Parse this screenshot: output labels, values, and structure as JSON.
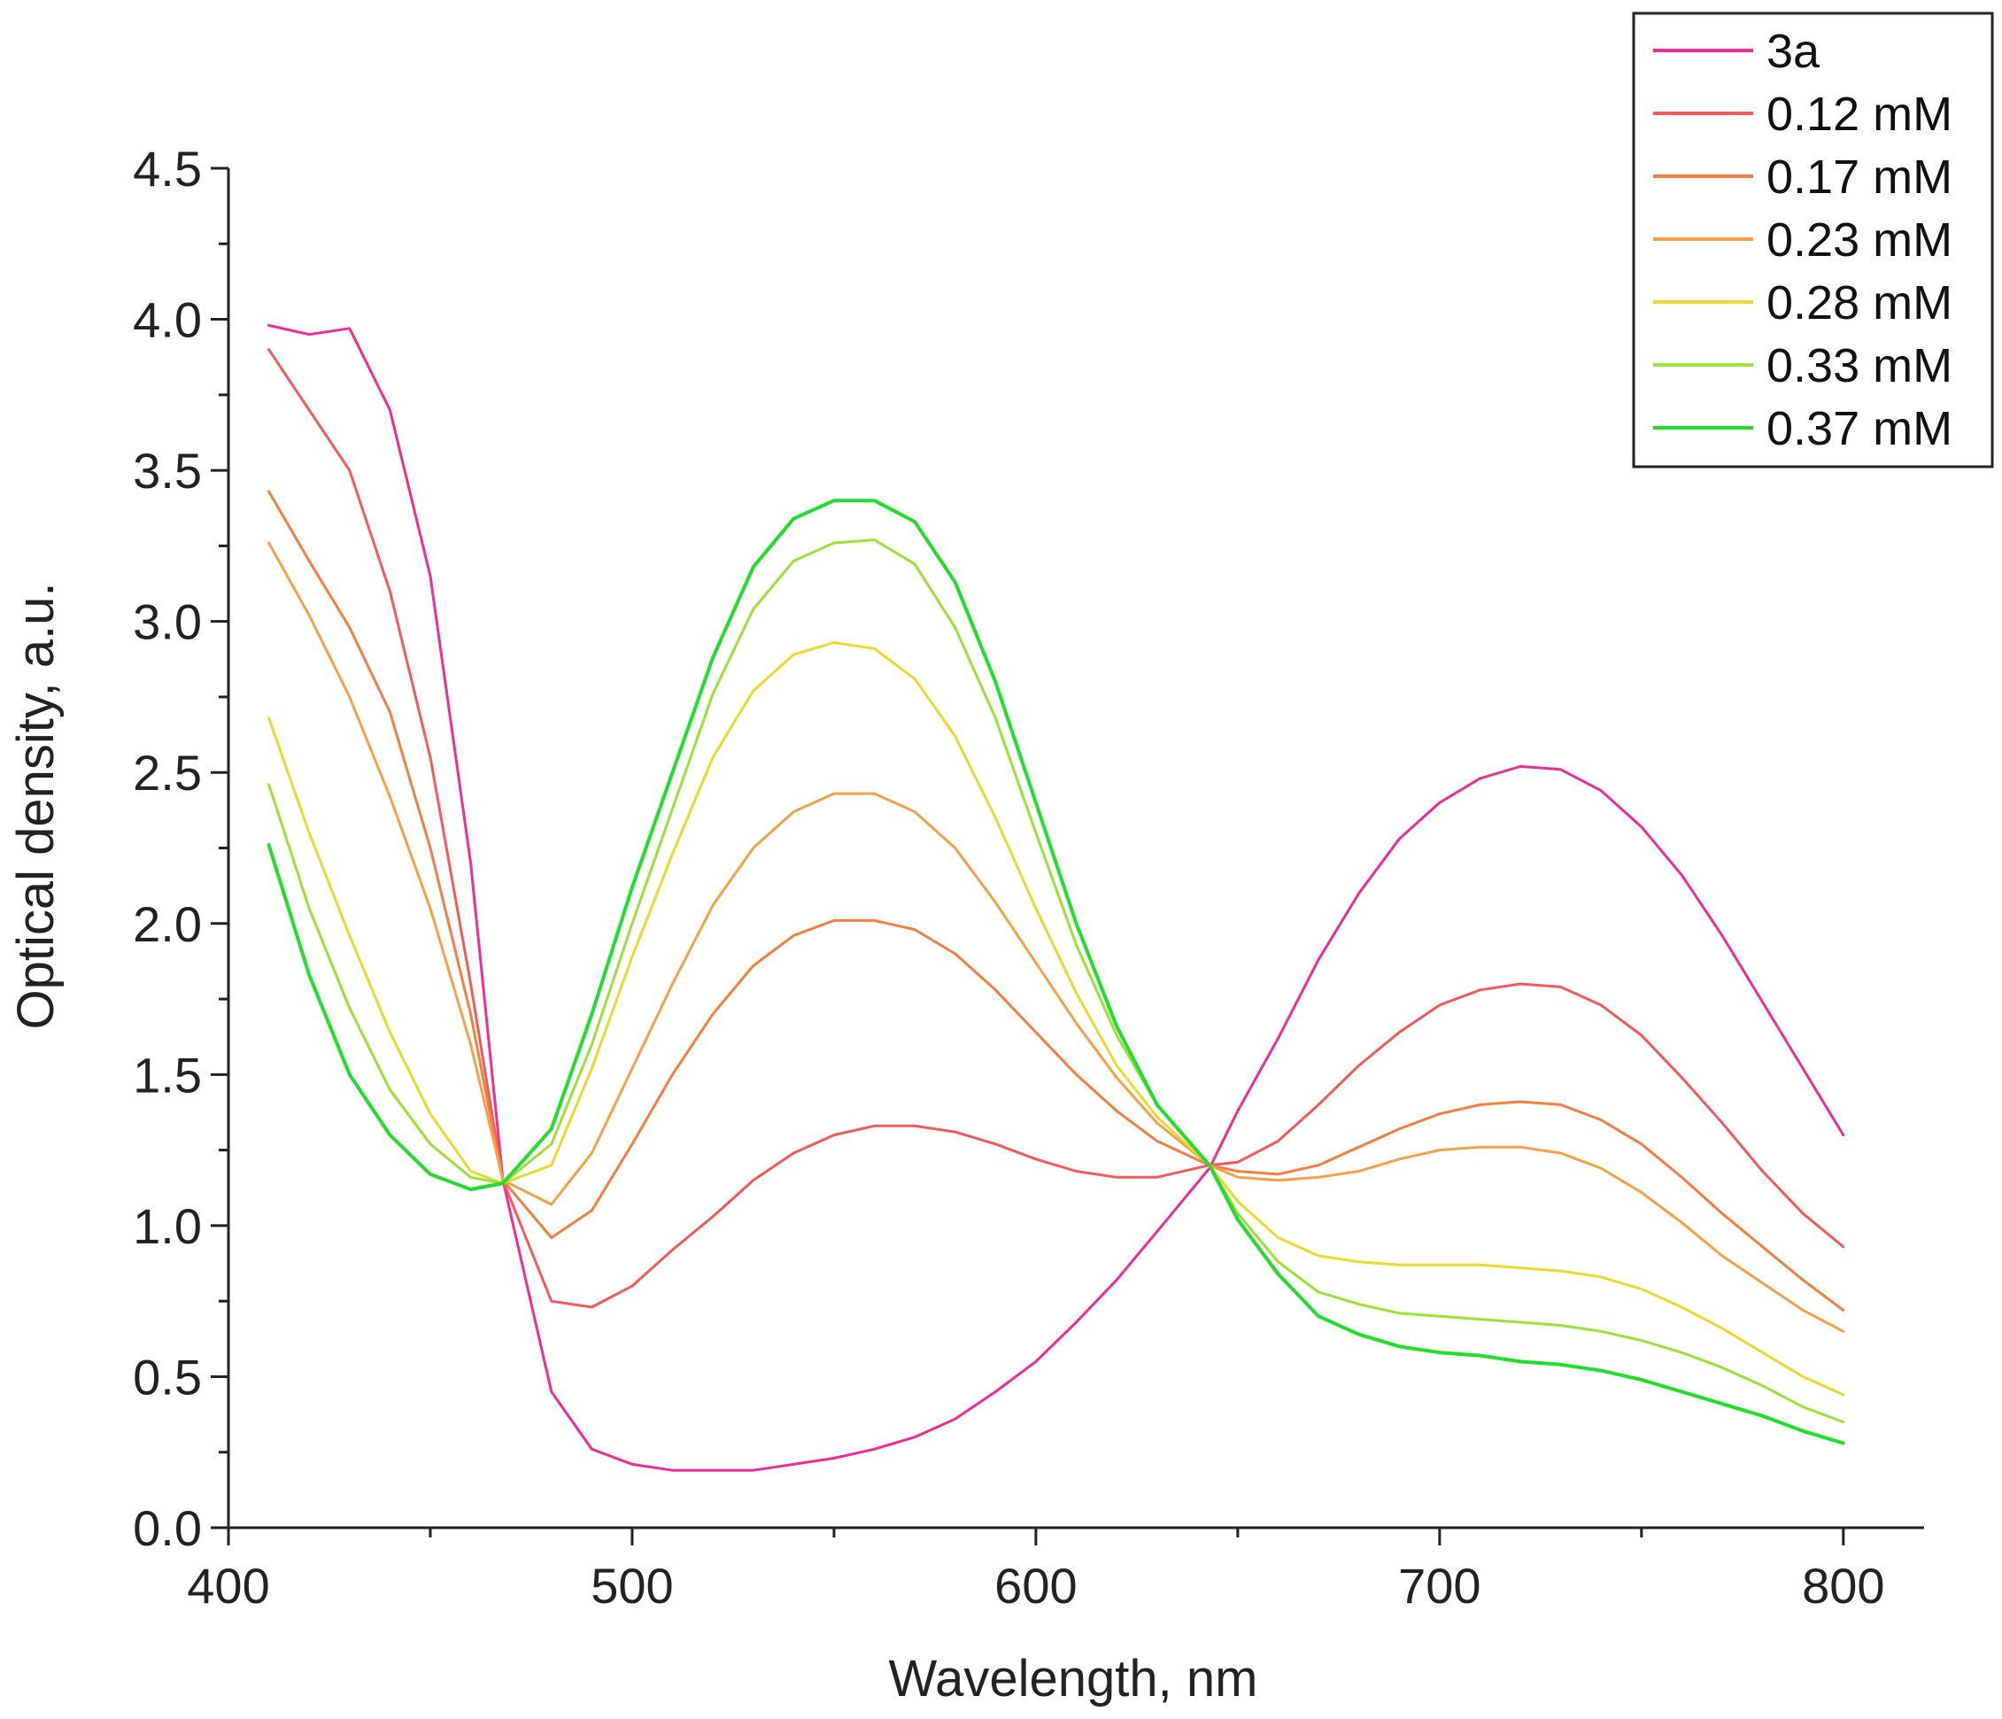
{
  "chart_data": {
    "type": "line",
    "title": "",
    "xlabel": "Wavelength, nm",
    "ylabel": "Optical density, a.u.",
    "xlim": [
      400,
      820
    ],
    "ylim": [
      0,
      4.5
    ],
    "x_ticks": [
      "400",
      "500",
      "600",
      "700",
      "800"
    ],
    "y_ticks": [
      "0.0",
      "0.5",
      "1.0",
      "1.5",
      "2.0",
      "2.5",
      "3.0",
      "3.5",
      "4.0",
      "4.5"
    ],
    "grid": false,
    "legend_position": "top-right",
    "x": [
      410,
      420,
      430,
      440,
      450,
      460,
      468,
      480,
      490,
      500,
      510,
      520,
      530,
      540,
      550,
      560,
      570,
      580,
      590,
      600,
      610,
      620,
      630,
      643,
      650,
      660,
      670,
      680,
      690,
      700,
      710,
      720,
      730,
      740,
      750,
      760,
      770,
      780,
      790,
      800
    ],
    "series": [
      {
        "name": "3a",
        "color": "#ee2d96",
        "values": [
          3.98,
          3.95,
          3.97,
          3.7,
          3.15,
          2.2,
          1.15,
          0.45,
          0.26,
          0.21,
          0.19,
          0.19,
          0.19,
          0.21,
          0.23,
          0.26,
          0.3,
          0.36,
          0.45,
          0.55,
          0.68,
          0.82,
          0.98,
          1.19,
          1.38,
          1.62,
          1.88,
          2.1,
          2.28,
          2.4,
          2.48,
          2.52,
          2.51,
          2.44,
          2.32,
          2.16,
          1.96,
          1.74,
          1.52,
          1.3
        ]
      },
      {
        "name": "0.12 mM",
        "color": "#f45a5a",
        "values": [
          3.9,
          3.7,
          3.5,
          3.1,
          2.55,
          1.8,
          1.15,
          0.75,
          0.73,
          0.8,
          0.92,
          1.03,
          1.15,
          1.24,
          1.3,
          1.33,
          1.33,
          1.31,
          1.27,
          1.22,
          1.18,
          1.16,
          1.16,
          1.2,
          1.21,
          1.28,
          1.4,
          1.53,
          1.64,
          1.73,
          1.78,
          1.8,
          1.79,
          1.73,
          1.63,
          1.49,
          1.34,
          1.18,
          1.04,
          0.93
        ]
      },
      {
        "name": "0.17 mM",
        "color": "#f57e40",
        "values": [
          3.43,
          3.2,
          2.98,
          2.7,
          2.25,
          1.7,
          1.15,
          0.96,
          1.05,
          1.27,
          1.5,
          1.7,
          1.86,
          1.96,
          2.01,
          2.01,
          1.98,
          1.9,
          1.78,
          1.64,
          1.5,
          1.38,
          1.28,
          1.2,
          1.18,
          1.17,
          1.2,
          1.26,
          1.32,
          1.37,
          1.4,
          1.41,
          1.4,
          1.35,
          1.27,
          1.16,
          1.04,
          0.93,
          0.82,
          0.72
        ]
      },
      {
        "name": "0.23 mM",
        "color": "#f8a048",
        "values": [
          3.26,
          3.02,
          2.75,
          2.42,
          2.05,
          1.6,
          1.15,
          1.07,
          1.24,
          1.52,
          1.8,
          2.06,
          2.25,
          2.37,
          2.43,
          2.43,
          2.37,
          2.25,
          2.07,
          1.87,
          1.67,
          1.49,
          1.34,
          1.2,
          1.16,
          1.15,
          1.16,
          1.18,
          1.22,
          1.25,
          1.26,
          1.26,
          1.24,
          1.19,
          1.11,
          1.01,
          0.9,
          0.81,
          0.72,
          0.65
        ]
      },
      {
        "name": "0.28 mM",
        "color": "#ecd930",
        "values": [
          2.68,
          2.3,
          1.96,
          1.64,
          1.37,
          1.18,
          1.14,
          1.2,
          1.52,
          1.89,
          2.23,
          2.55,
          2.77,
          2.89,
          2.93,
          2.91,
          2.81,
          2.62,
          2.35,
          2.05,
          1.77,
          1.53,
          1.36,
          1.2,
          1.08,
          0.96,
          0.9,
          0.88,
          0.87,
          0.87,
          0.87,
          0.86,
          0.85,
          0.83,
          0.79,
          0.73,
          0.66,
          0.58,
          0.5,
          0.44
        ]
      },
      {
        "name": "0.33 mM",
        "color": "#9be136",
        "values": [
          2.46,
          2.05,
          1.72,
          1.45,
          1.27,
          1.16,
          1.14,
          1.27,
          1.6,
          2.0,
          2.38,
          2.76,
          3.04,
          3.2,
          3.26,
          3.27,
          3.19,
          2.98,
          2.68,
          2.3,
          1.93,
          1.63,
          1.4,
          1.2,
          1.04,
          0.88,
          0.78,
          0.74,
          0.71,
          0.7,
          0.69,
          0.68,
          0.67,
          0.65,
          0.62,
          0.58,
          0.53,
          0.47,
          0.4,
          0.35
        ]
      },
      {
        "name": "0.37 mM",
        "color": "#22dd2c",
        "values": [
          2.26,
          1.83,
          1.5,
          1.3,
          1.17,
          1.12,
          1.14,
          1.32,
          1.7,
          2.12,
          2.5,
          2.88,
          3.18,
          3.34,
          3.4,
          3.4,
          3.33,
          3.13,
          2.8,
          2.4,
          2.0,
          1.66,
          1.4,
          1.2,
          1.02,
          0.84,
          0.7,
          0.64,
          0.6,
          0.58,
          0.57,
          0.55,
          0.54,
          0.52,
          0.49,
          0.45,
          0.41,
          0.37,
          0.32,
          0.28
        ]
      }
    ]
  }
}
